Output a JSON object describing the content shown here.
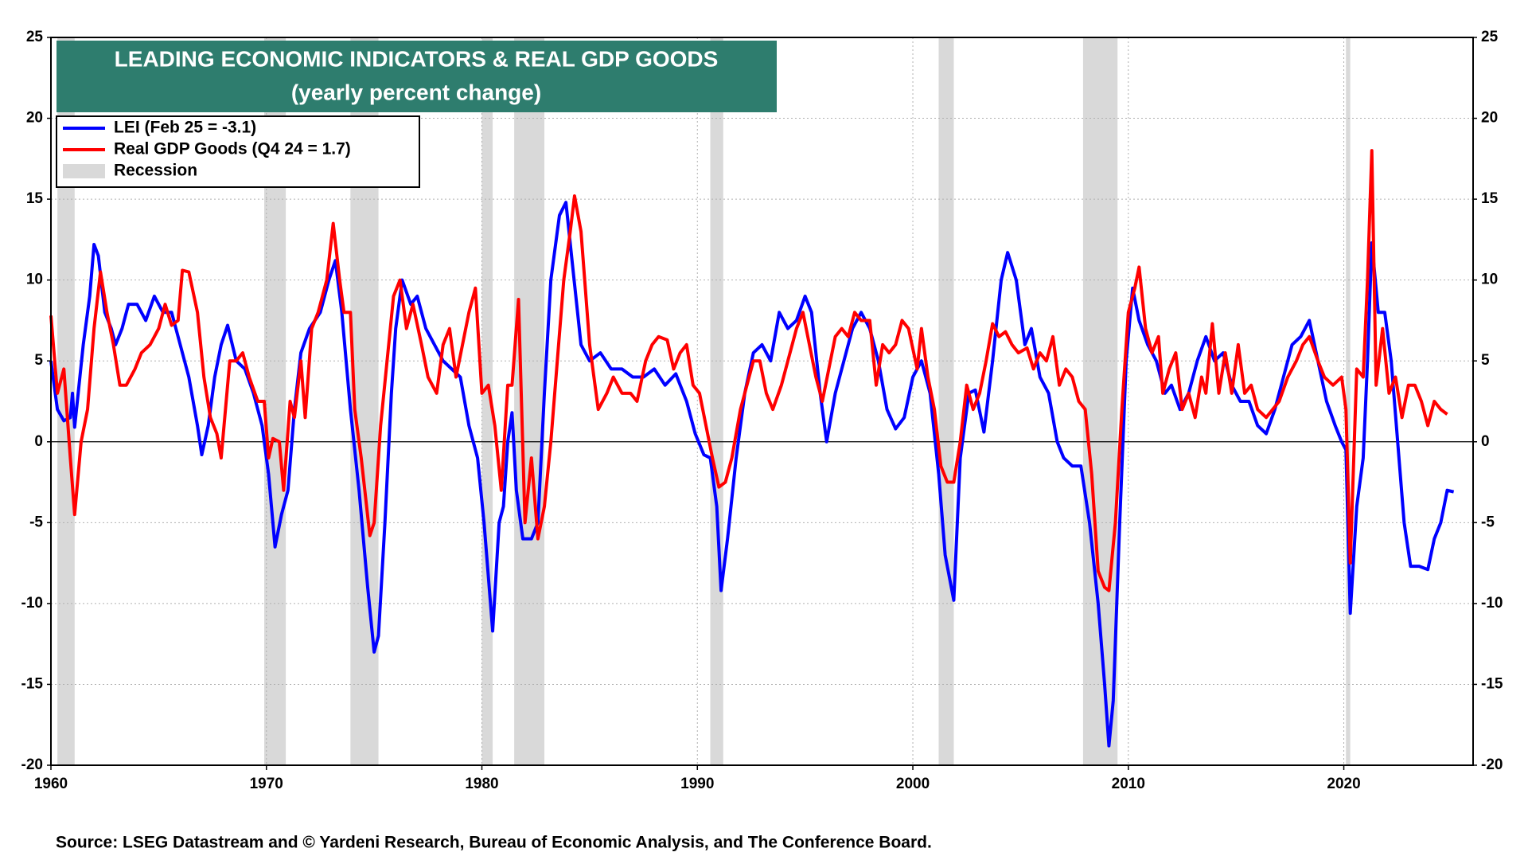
{
  "chart_data": {
    "type": "line",
    "title": "LEADING ECONOMIC INDICATORS & REAL GDP GOODS",
    "subtitle": "(yearly percent change)",
    "source": "Source: LSEG Datastream and © Yardeni Research, Bureau of Economic Analysis, and The Conference Board.",
    "xlim": [
      1960,
      2026
    ],
    "xticks": [
      1960,
      1970,
      1980,
      1990,
      2000,
      2010,
      2020
    ],
    "ylim": [
      -20,
      25
    ],
    "yticks": [
      -20,
      -15,
      -10,
      -5,
      0,
      5,
      10,
      15,
      20,
      25
    ],
    "y2lim": [
      -20,
      25
    ],
    "y2ticks": [
      -20,
      -15,
      -10,
      -5,
      0,
      5,
      10,
      15,
      20,
      25
    ],
    "grid": true,
    "legend": "upper left",
    "recessions": {
      "name": "Recession",
      "color": "#d9d9d9",
      "periods": [
        [
          1960.3,
          1961.1
        ],
        [
          1969.9,
          1970.9
        ],
        [
          1973.9,
          1975.2
        ],
        [
          1980.0,
          1980.5
        ],
        [
          1981.5,
          1982.9
        ],
        [
          1990.6,
          1991.2
        ],
        [
          2001.2,
          2001.9
        ],
        [
          2007.9,
          2009.5
        ],
        [
          2020.1,
          2020.3
        ]
      ]
    },
    "series": [
      {
        "name": "LEI (Feb 25 = -3.1)",
        "color": "#0000ff",
        "x": [
          1960.0,
          1960.3,
          1960.6,
          1960.9,
          1961.0,
          1961.1,
          1961.5,
          1961.8,
          1962.0,
          1962.2,
          1962.5,
          1962.8,
          1963.0,
          1963.3,
          1963.6,
          1964.0,
          1964.4,
          1964.8,
          1965.2,
          1965.6,
          1966.0,
          1966.4,
          1966.8,
          1967.0,
          1967.3,
          1967.6,
          1967.9,
          1968.2,
          1968.6,
          1969.0,
          1969.4,
          1969.8,
          1970.1,
          1970.4,
          1970.7,
          1971.0,
          1971.3,
          1971.6,
          1972.0,
          1972.5,
          1972.9,
          1973.2,
          1973.5,
          1973.9,
          1974.3,
          1974.7,
          1975.0,
          1975.2,
          1975.5,
          1975.8,
          1976.0,
          1976.3,
          1976.7,
          1977.0,
          1977.4,
          1977.8,
          1978.2,
          1978.6,
          1979.0,
          1979.4,
          1979.8,
          1980.1,
          1980.4,
          1980.5,
          1980.8,
          1981.0,
          1981.2,
          1981.4,
          1981.6,
          1981.9,
          1982.3,
          1982.6,
          1982.9,
          1983.2,
          1983.6,
          1983.9,
          1984.2,
          1984.6,
          1985.0,
          1985.5,
          1986.0,
          1986.5,
          1987.0,
          1987.5,
          1988.0,
          1988.5,
          1989.0,
          1989.5,
          1989.9,
          1990.3,
          1990.6,
          1990.9,
          1991.1,
          1991.4,
          1991.8,
          1992.2,
          1992.6,
          1993.0,
          1993.4,
          1993.8,
          1994.2,
          1994.6,
          1995.0,
          1995.3,
          1995.7,
          1996.0,
          1996.4,
          1996.8,
          1997.2,
          1997.6,
          1998.0,
          1998.4,
          1998.8,
          1999.2,
          1999.6,
          2000.0,
          2000.4,
          2000.8,
          2001.2,
          2001.5,
          2001.9,
          2002.2,
          2002.6,
          2002.9,
          2003.3,
          2003.7,
          2004.1,
          2004.4,
          2004.8,
          2005.2,
          2005.5,
          2005.9,
          2006.3,
          2006.7,
          2007.0,
          2007.4,
          2007.8,
          2008.2,
          2008.6,
          2008.9,
          2009.1,
          2009.3,
          2009.6,
          2009.9,
          2010.2,
          2010.5,
          2010.9,
          2011.3,
          2011.7,
          2012.0,
          2012.4,
          2012.8,
          2013.2,
          2013.6,
          2014.0,
          2014.4,
          2014.8,
          2015.2,
          2015.6,
          2016.0,
          2016.4,
          2016.8,
          2017.2,
          2017.6,
          2018.0,
          2018.4,
          2018.8,
          2019.2,
          2019.6,
          2019.9,
          2020.1,
          2020.3,
          2020.6,
          2020.9,
          2021.1,
          2021.3,
          2021.6,
          2021.9,
          2022.2,
          2022.5,
          2022.8,
          2023.1,
          2023.5,
          2023.9,
          2024.2,
          2024.5,
          2024.8,
          2025.1
        ],
        "values": [
          5,
          2,
          1.3,
          1.5,
          3,
          0.9,
          6,
          9,
          12.2,
          11.5,
          8,
          7,
          6,
          7,
          8.5,
          8.5,
          7.5,
          9,
          8,
          8,
          6,
          4,
          1,
          -0.8,
          1,
          4,
          6,
          7.2,
          5,
          4.5,
          3,
          1,
          -2,
          -6.5,
          -4.5,
          -3,
          2,
          5.5,
          7,
          8,
          10,
          11.2,
          8,
          2,
          -3,
          -9,
          -13,
          -12,
          -5,
          3,
          7,
          10,
          8.5,
          9,
          7,
          6,
          5,
          4.5,
          4,
          1,
          -1,
          -5,
          -10,
          -11.7,
          -5,
          -4,
          0,
          1.8,
          -3,
          -6,
          -6,
          -5,
          3,
          10,
          14,
          14.8,
          11,
          6,
          5,
          5.5,
          4.5,
          4.5,
          4,
          4,
          4.5,
          3.5,
          4.2,
          2.5,
          0.5,
          -0.8,
          -1,
          -4,
          -9.2,
          -6,
          -1,
          3,
          5.5,
          6,
          5,
          8,
          7,
          7.5,
          9,
          8,
          3,
          0,
          3,
          5,
          7,
          8,
          7,
          5,
          2,
          0.8,
          1.5,
          4,
          5,
          3,
          -2,
          -7,
          -9.8,
          -1,
          3,
          3.2,
          0.6,
          5,
          10,
          11.7,
          10,
          6,
          7,
          4,
          3,
          0,
          -1,
          -1.5,
          -1.5,
          -5,
          -10,
          -15,
          -18.8,
          -16,
          -5,
          5,
          9.5,
          7.5,
          6,
          5,
          3,
          3.5,
          2,
          3,
          5,
          6.5,
          5,
          5.5,
          3.5,
          2.5,
          2.5,
          1,
          0.5,
          2,
          4,
          6,
          6.5,
          7.5,
          5,
          2.5,
          1,
          0,
          -0.5,
          -10.6,
          -4,
          -1,
          5,
          12.3,
          8,
          8,
          5,
          0,
          -5,
          -7.7,
          -7.7,
          -7.9,
          -6,
          -5,
          -3,
          -3.1
        ]
      },
      {
        "name": "Real GDP Goods (Q4 24 = 1.7)",
        "color": "#ff0000",
        "x": [
          1960.0,
          1960.3,
          1960.6,
          1960.9,
          1961.1,
          1961.4,
          1961.7,
          1962.0,
          1962.3,
          1962.6,
          1962.9,
          1963.2,
          1963.5,
          1963.9,
          1964.2,
          1964.6,
          1965.0,
          1965.3,
          1965.6,
          1965.9,
          1966.1,
          1966.4,
          1966.8,
          1967.1,
          1967.4,
          1967.7,
          1967.9,
          1968.3,
          1968.6,
          1968.9,
          1969.2,
          1969.6,
          1969.9,
          1970.1,
          1970.3,
          1970.6,
          1970.8,
          1971.1,
          1971.3,
          1971.6,
          1971.8,
          1972.1,
          1972.4,
          1972.8,
          1973.1,
          1973.4,
          1973.6,
          1973.9,
          1974.1,
          1974.4,
          1974.8,
          1975.0,
          1975.3,
          1975.6,
          1975.9,
          1976.2,
          1976.5,
          1976.8,
          1977.2,
          1977.5,
          1977.9,
          1978.2,
          1978.5,
          1978.8,
          1979.1,
          1979.4,
          1979.7,
          1980.0,
          1980.3,
          1980.6,
          1980.9,
          1981.2,
          1981.4,
          1981.7,
          1982.0,
          1982.3,
          1982.6,
          1982.9,
          1983.2,
          1983.5,
          1983.8,
          1984.1,
          1984.3,
          1984.6,
          1985.0,
          1985.4,
          1985.8,
          1986.1,
          1986.5,
          1986.9,
          1987.2,
          1987.6,
          1987.9,
          1988.2,
          1988.6,
          1988.9,
          1989.2,
          1989.5,
          1989.8,
          1990.1,
          1990.4,
          1990.7,
          1991.0,
          1991.3,
          1991.6,
          1992.0,
          1992.3,
          1992.6,
          1992.9,
          1993.2,
          1993.5,
          1993.9,
          1994.2,
          1994.6,
          1994.9,
          1995.2,
          1995.5,
          1995.8,
          1996.1,
          1996.4,
          1996.7,
          1997.0,
          1997.3,
          1997.6,
          1998.0,
          1998.3,
          1998.6,
          1998.9,
          1999.2,
          1999.5,
          1999.8,
          2000.2,
          2000.4,
          2000.7,
          2001.0,
          2001.3,
          2001.6,
          2001.9,
          2002.2,
          2002.5,
          2002.8,
          2003.1,
          2003.4,
          2003.7,
          2004.0,
          2004.3,
          2004.6,
          2004.9,
          2005.3,
          2005.6,
          2005.9,
          2006.2,
          2006.5,
          2006.8,
          2007.1,
          2007.4,
          2007.7,
          2008.0,
          2008.3,
          2008.6,
          2008.9,
          2009.1,
          2009.4,
          2009.7,
          2010.0,
          2010.3,
          2010.5,
          2010.8,
          2011.1,
          2011.4,
          2011.6,
          2011.9,
          2012.2,
          2012.5,
          2012.8,
          2013.1,
          2013.4,
          2013.6,
          2013.9,
          2014.2,
          2014.5,
          2014.8,
          2015.1,
          2015.4,
          2015.7,
          2016.0,
          2016.4,
          2016.7,
          2017.0,
          2017.4,
          2017.8,
          2018.1,
          2018.4,
          2018.8,
          2019.1,
          2019.5,
          2019.9,
          2020.1,
          2020.3,
          2020.6,
          2020.9,
          2021.1,
          2021.3,
          2021.5,
          2021.8,
          2022.1,
          2022.4,
          2022.7,
          2023.0,
          2023.3,
          2023.6,
          2023.9,
          2024.2,
          2024.5,
          2024.8
        ],
        "values": [
          7.8,
          3,
          4.5,
          -1,
          -4.5,
          0,
          2,
          7,
          10.5,
          8,
          6,
          3.5,
          3.5,
          4.5,
          5.5,
          6,
          7,
          8.5,
          7.2,
          7.5,
          10.6,
          10.5,
          8,
          4,
          1.5,
          0.5,
          -1,
          5,
          5,
          5.5,
          4,
          2.5,
          2.5,
          -1,
          0.2,
          0,
          -3,
          2.5,
          1.5,
          5,
          1.5,
          7,
          8,
          10,
          13.5,
          10,
          8,
          8,
          2,
          -1,
          -5.8,
          -5,
          1,
          5,
          9,
          10,
          7,
          8.5,
          6,
          4,
          3,
          6,
          7,
          4,
          6,
          8,
          9.5,
          3,
          3.5,
          1,
          -3,
          3.5,
          3.5,
          8.8,
          -5,
          -1,
          -6,
          -4,
          0,
          5,
          10,
          13,
          15.2,
          13,
          6,
          2,
          3,
          4,
          3,
          3,
          2.5,
          5,
          6,
          6.5,
          6.3,
          4.5,
          5.5,
          6,
          3.5,
          3,
          1,
          -1,
          -2.8,
          -2.5,
          -1,
          2,
          3.5,
          5,
          5,
          3,
          2,
          3.5,
          5,
          7,
          8,
          6,
          4,
          2.5,
          4.5,
          6.5,
          7,
          6.5,
          8,
          7.5,
          7.5,
          3.5,
          6,
          5.5,
          6,
          7.5,
          7,
          4.5,
          7,
          4,
          2,
          -1.5,
          -2.5,
          -2.5,
          0,
          3.5,
          2,
          3,
          5,
          7.3,
          6.5,
          6.8,
          6,
          5.5,
          5.8,
          4.5,
          5.5,
          5,
          6.5,
          3.5,
          4.5,
          4,
          2.5,
          2,
          -2,
          -8,
          -9,
          -9.2,
          -5,
          2,
          8,
          9.5,
          10.8,
          7,
          5.5,
          6.5,
          3,
          4.5,
          5.5,
          2,
          3,
          1.5,
          4,
          3,
          7.3,
          3,
          5.5,
          3,
          6,
          3,
          3.5,
          2,
          1.5,
          2,
          2.5,
          4,
          5,
          6,
          6.5,
          5,
          4,
          3.5,
          4,
          2,
          -7.5,
          4.5,
          4,
          10,
          18,
          3.5,
          7,
          3,
          4,
          1.5,
          3.5,
          3.5,
          2.5,
          1,
          2.5,
          2,
          1.7
        ]
      }
    ]
  }
}
